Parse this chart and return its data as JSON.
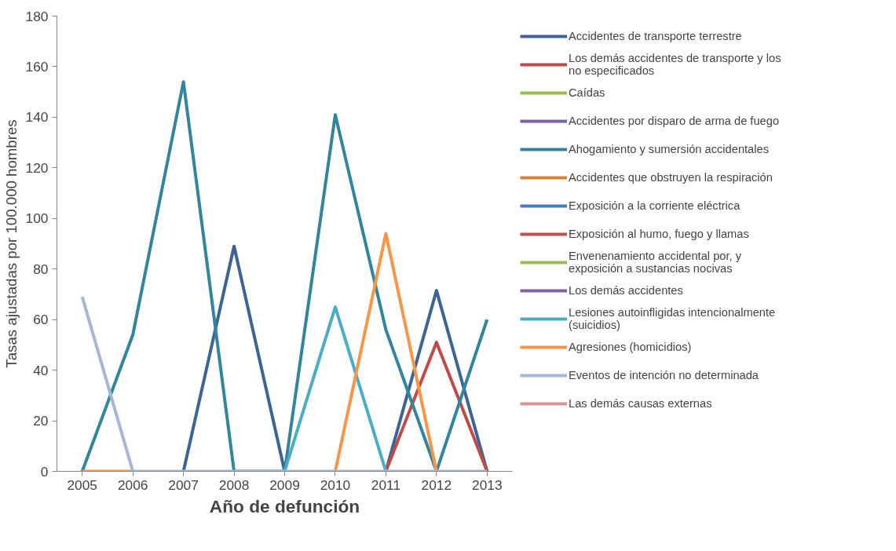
{
  "chart_data": {
    "type": "line",
    "xlabel": "Año de defunción",
    "ylabel": "Tasas ajustadas por 100.000 hombres",
    "categories": [
      "2005",
      "2006",
      "2007",
      "2008",
      "2009",
      "2010",
      "2011",
      "2012",
      "2013"
    ],
    "ylim": [
      0,
      180
    ],
    "yticks": [
      0,
      20,
      40,
      60,
      80,
      100,
      120,
      140,
      160,
      180
    ],
    "grid": false,
    "legend": "right",
    "series": [
      {
        "name": "Accidentes de transporte terrestre",
        "color": "#3c6496",
        "values": [
          null,
          null,
          0,
          89,
          0,
          null,
          0,
          71.5,
          0
        ]
      },
      {
        "name": "Los demás accidentes de transporte y los no especificados",
        "color": "#be4b48",
        "values": [
          null,
          null,
          null,
          null,
          null,
          null,
          0,
          51,
          0
        ]
      },
      {
        "name": "Caídas",
        "color": "#98b954",
        "values": [
          null,
          null,
          null,
          null,
          null,
          null,
          null,
          null,
          null
        ]
      },
      {
        "name": "Accidentes por disparo de arma de fuego",
        "color": "#7d60a0",
        "values": [
          null,
          null,
          null,
          null,
          null,
          null,
          null,
          null,
          null
        ]
      },
      {
        "name": "Ahogamiento y sumersión accidentales",
        "color": "#31859c",
        "values": [
          0,
          54,
          154,
          0,
          0,
          141,
          56,
          0,
          60
        ]
      },
      {
        "name": "Accidentes que obstruyen la respiración",
        "color": "#d9823b",
        "values": [
          null,
          null,
          null,
          null,
          null,
          null,
          null,
          null,
          null
        ]
      },
      {
        "name": "Exposición a la corriente eléctrica",
        "color": "#4a7ebb",
        "values": [
          null,
          null,
          null,
          null,
          null,
          null,
          null,
          null,
          null
        ]
      },
      {
        "name": "Exposición al humo, fuego y llamas",
        "color": "#c0504d",
        "values": [
          null,
          null,
          null,
          null,
          null,
          null,
          null,
          null,
          null
        ]
      },
      {
        "name": "Envenenamiento accidental por, y exposición a sustancias nocivas",
        "color": "#9bbb59",
        "values": [
          null,
          null,
          null,
          null,
          null,
          null,
          null,
          null,
          null
        ]
      },
      {
        "name": "Los demás accidentes",
        "color": "#8064a2",
        "values": [
          null,
          null,
          null,
          null,
          null,
          null,
          null,
          null,
          null
        ]
      },
      {
        "name": "Lesiones autoinfligidas intencionalmente (suicidios)",
        "color": "#4bacc6",
        "values": [
          null,
          null,
          null,
          null,
          0,
          65,
          0,
          null,
          null
        ]
      },
      {
        "name": "Agresiones (homicidios)",
        "color": "#f79646",
        "values": [
          0,
          0,
          null,
          null,
          null,
          0,
          94,
          0,
          null
        ]
      },
      {
        "name": "Eventos de intención no determinada",
        "color": "#a5b6d8",
        "values": [
          69,
          0,
          0,
          0,
          0,
          0,
          0,
          0,
          0
        ]
      },
      {
        "name": "Las demás causas externas",
        "color": "#d99694",
        "values": [
          null,
          null,
          null,
          null,
          null,
          null,
          null,
          null,
          null
        ]
      }
    ]
  }
}
